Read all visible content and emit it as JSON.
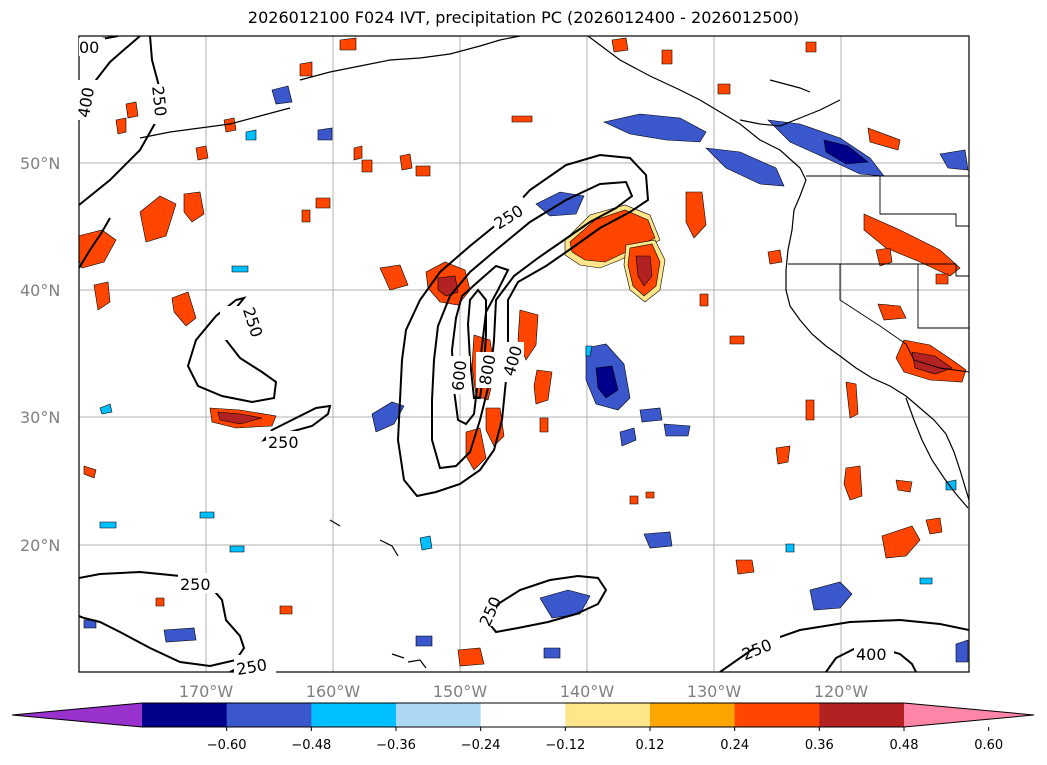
{
  "title": "2026012100 F024 IVT, precipitation PC (2026012400 - 2026012500)",
  "lat_labels": [
    "50°N",
    "40°N",
    "30°N",
    "20°N"
  ],
  "lon_labels": [
    "170°W",
    "160°W",
    "150°W",
    "140°W",
    "130°W",
    "120°W"
  ],
  "ivt_contour_labels": [
    "250",
    "250",
    "250",
    "250",
    "250",
    "250",
    "250",
    "400",
    "400",
    "400",
    "600",
    "800",
    "00"
  ],
  "colorbar": {
    "ticks": [
      "−0.60",
      "−0.48",
      "−0.36",
      "−0.24",
      "−0.12",
      "0.12",
      "0.24",
      "0.36",
      "0.48",
      "0.60"
    ],
    "colors": [
      "#9932cc",
      "#00008b",
      "#3a57cc",
      "#00bfff",
      "#add8f5",
      "#ffffff",
      "#ffe68a",
      "#ffa500",
      "#ff4500",
      "#b22222",
      "#ff85a8"
    ]
  }
}
